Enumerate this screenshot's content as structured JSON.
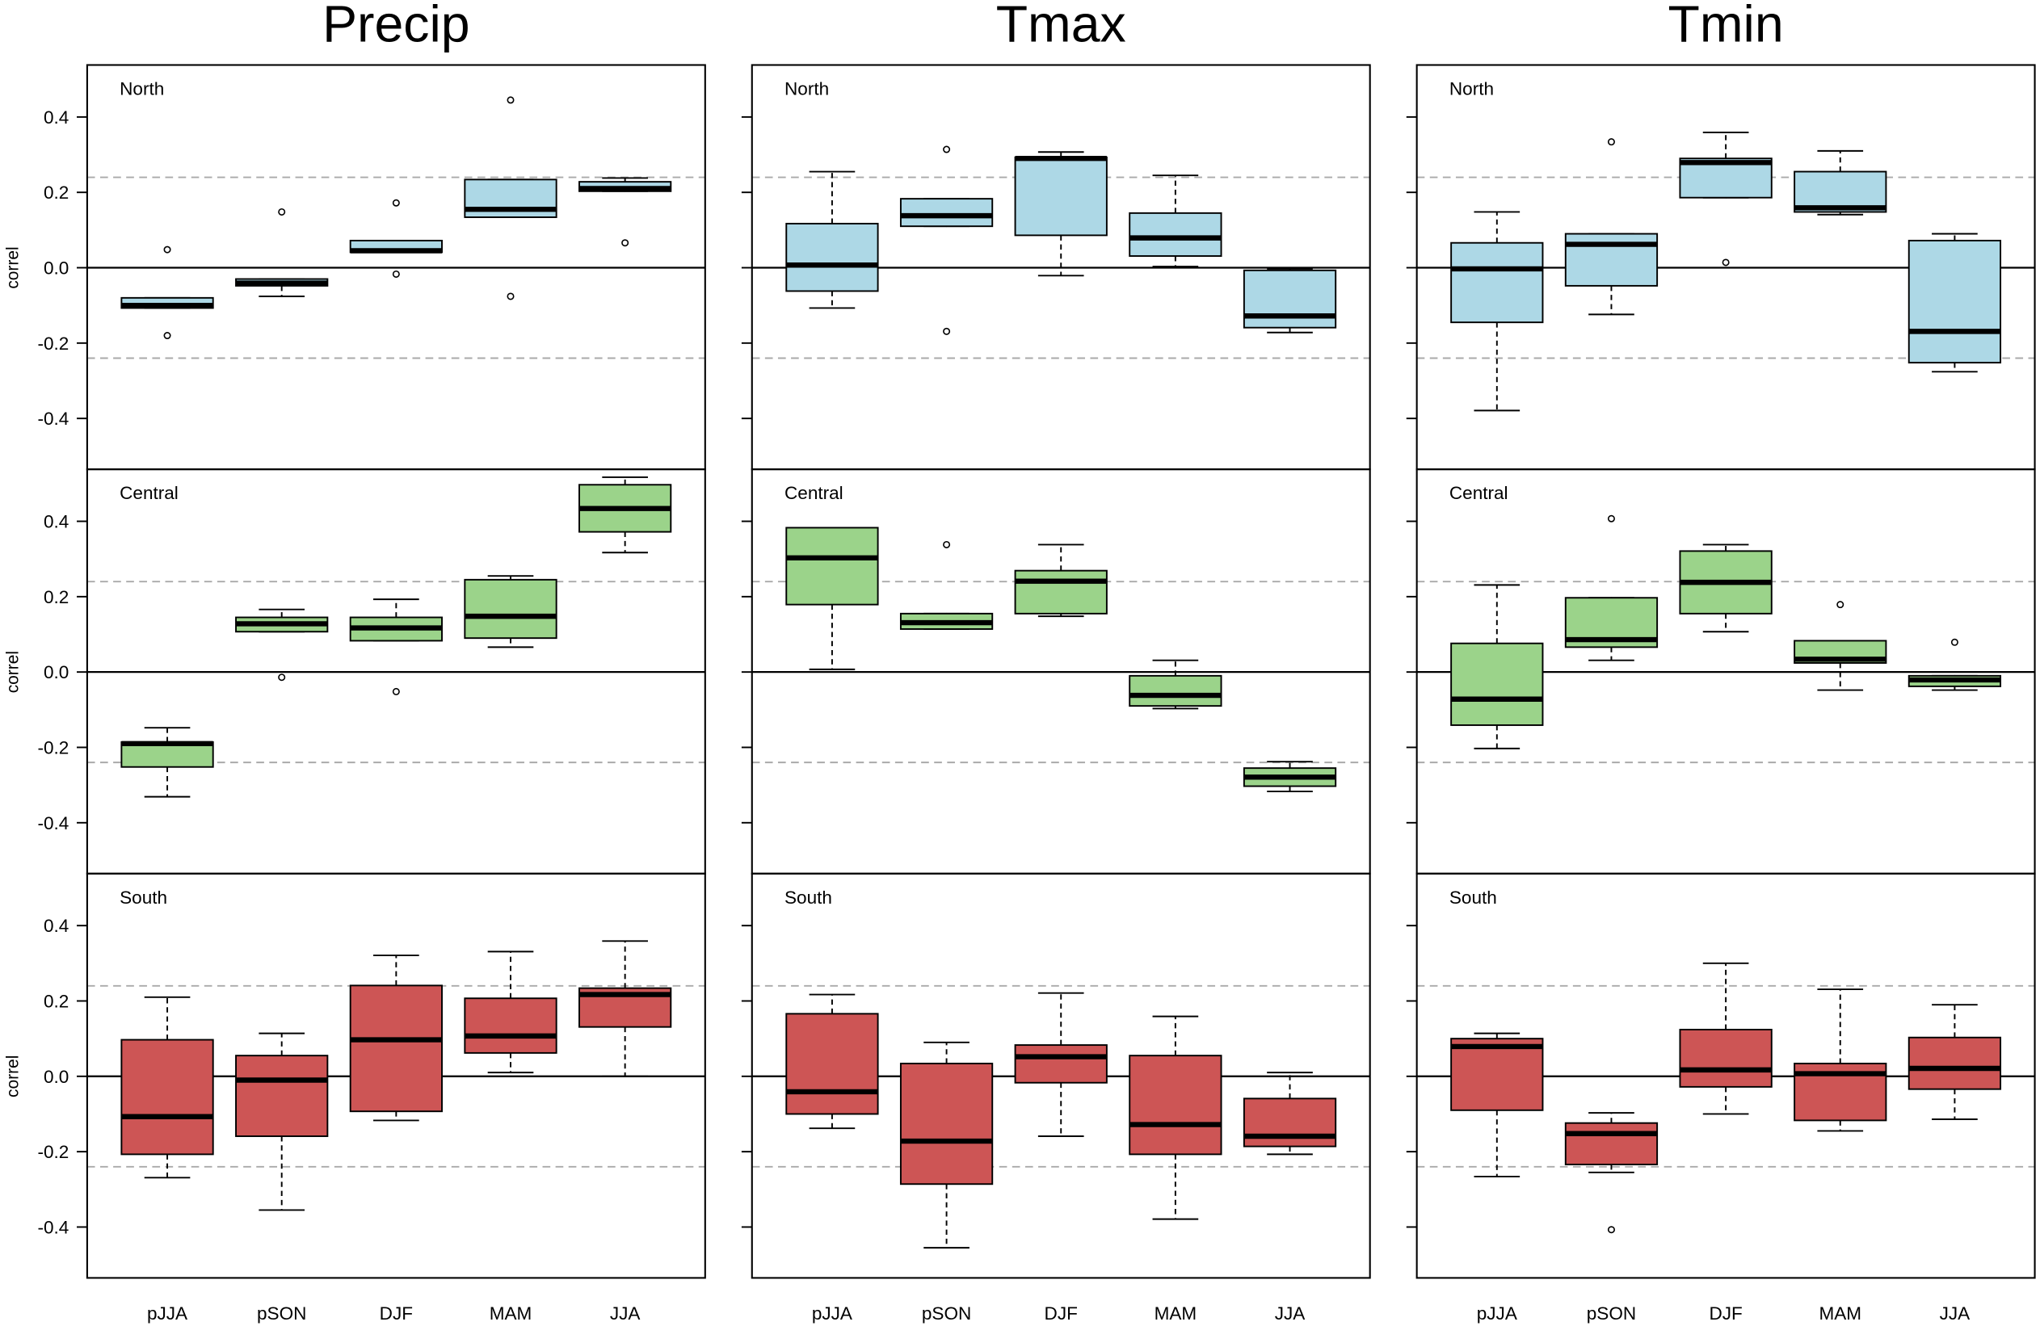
{
  "chart_data": {
    "type": "box",
    "ylabel": "correl",
    "categories": [
      "pJJA",
      "pSON",
      "DJF",
      "MAM",
      "JJA"
    ],
    "ylim": [
      -0.535,
      0.538
    ],
    "yticks": [
      -0.4,
      -0.2,
      {
        "value": 0,
        "label": "0.0"
      },
      0.2,
      0.4
    ],
    "dashed_lines": [
      0.24,
      -0.24
    ],
    "solid_lines": [
      0
    ],
    "columns": [
      {
        "title": "Precip",
        "panels": [
          {
            "region": "North",
            "color": "#add8e6",
            "boxes": [
              {
                "whisker_low": -0.107,
                "q1": -0.107,
                "median": -0.1,
                "q3": -0.08,
                "whisker_high": -0.08,
                "outliers": [
                  0.048,
                  -0.18
                ]
              },
              {
                "whisker_low": -0.076,
                "q1": -0.048,
                "median": -0.041,
                "q3": -0.03,
                "whisker_high": -0.03,
                "outliers": [
                  0.148
                ]
              },
              {
                "whisker_low": 0.041,
                "q1": 0.041,
                "median": 0.045,
                "q3": 0.072,
                "whisker_high": 0.072,
                "outliers": [
                  0.172,
                  -0.017
                ]
              },
              {
                "whisker_low": 0.134,
                "q1": 0.134,
                "median": 0.155,
                "q3": 0.234,
                "whisker_high": 0.234,
                "outliers": [
                  0.445,
                  -0.076
                ]
              },
              {
                "whisker_low": 0.203,
                "q1": 0.203,
                "median": 0.21,
                "q3": 0.228,
                "whisker_high": 0.238,
                "outliers": [
                  0.066
                ]
              }
            ]
          },
          {
            "region": "Central",
            "color": "#9bd38a",
            "boxes": [
              {
                "whisker_low": -0.331,
                "q1": -0.252,
                "median": -0.19,
                "q3": -0.186,
                "whisker_high": -0.148,
                "outliers": []
              },
              {
                "whisker_low": 0.107,
                "q1": 0.107,
                "median": 0.128,
                "q3": 0.145,
                "whisker_high": 0.166,
                "outliers": [
                  -0.014
                ]
              },
              {
                "whisker_low": 0.083,
                "q1": 0.083,
                "median": 0.117,
                "q3": 0.145,
                "whisker_high": 0.193,
                "outliers": [
                  -0.052
                ]
              },
              {
                "whisker_low": 0.066,
                "q1": 0.09,
                "median": 0.148,
                "q3": 0.245,
                "whisker_high": 0.255,
                "outliers": []
              },
              {
                "whisker_low": 0.317,
                "q1": 0.372,
                "median": 0.434,
                "q3": 0.497,
                "whisker_high": 0.517,
                "outliers": []
              }
            ]
          },
          {
            "region": "South",
            "color": "#cd5555",
            "boxes": [
              {
                "whisker_low": -0.269,
                "q1": -0.207,
                "median": -0.107,
                "q3": 0.097,
                "whisker_high": 0.21,
                "outliers": []
              },
              {
                "whisker_low": -0.355,
                "q1": -0.159,
                "median": -0.01,
                "q3": 0.055,
                "whisker_high": 0.114,
                "outliers": []
              },
              {
                "whisker_low": -0.117,
                "q1": -0.093,
                "median": 0.097,
                "q3": 0.241,
                "whisker_high": 0.321,
                "outliers": []
              },
              {
                "whisker_low": 0.01,
                "q1": 0.062,
                "median": 0.107,
                "q3": 0.207,
                "whisker_high": 0.331,
                "outliers": []
              },
              {
                "whisker_low": 0.0,
                "q1": 0.131,
                "median": 0.217,
                "q3": 0.234,
                "whisker_high": 0.359,
                "outliers": []
              }
            ]
          }
        ]
      },
      {
        "title": "Tmax",
        "panels": [
          {
            "region": "North",
            "color": "#add8e6",
            "boxes": [
              {
                "whisker_low": -0.107,
                "q1": -0.062,
                "median": 0.007,
                "q3": 0.117,
                "whisker_high": 0.255,
                "outliers": []
              },
              {
                "whisker_low": 0.11,
                "q1": 0.11,
                "median": 0.138,
                "q3": 0.183,
                "whisker_high": 0.183,
                "outliers": [
                  0.314,
                  -0.169
                ]
              },
              {
                "whisker_low": -0.021,
                "q1": 0.086,
                "median": 0.29,
                "q3": 0.293,
                "whisker_high": 0.307,
                "outliers": []
              },
              {
                "whisker_low": 0.003,
                "q1": 0.031,
                "median": 0.079,
                "q3": 0.145,
                "whisker_high": 0.245,
                "outliers": []
              },
              {
                "whisker_low": -0.172,
                "q1": -0.159,
                "median": -0.128,
                "q3": -0.007,
                "whisker_high": -0.003,
                "outliers": []
              }
            ]
          },
          {
            "region": "Central",
            "color": "#9bd38a",
            "boxes": [
              {
                "whisker_low": 0.007,
                "q1": 0.179,
                "median": 0.303,
                "q3": 0.383,
                "whisker_high": 0.383,
                "outliers": []
              },
              {
                "whisker_low": 0.114,
                "q1": 0.114,
                "median": 0.131,
                "q3": 0.155,
                "whisker_high": 0.155,
                "outliers": [
                  0.338
                ]
              },
              {
                "whisker_low": 0.148,
                "q1": 0.155,
                "median": 0.241,
                "q3": 0.269,
                "whisker_high": 0.338,
                "outliers": []
              },
              {
                "whisker_low": -0.097,
                "q1": -0.09,
                "median": -0.062,
                "q3": -0.01,
                "whisker_high": 0.031,
                "outliers": []
              },
              {
                "whisker_low": -0.317,
                "q1": -0.303,
                "median": -0.279,
                "q3": -0.255,
                "whisker_high": -0.238,
                "outliers": []
              }
            ]
          },
          {
            "region": "South",
            "color": "#cd5555",
            "boxes": [
              {
                "whisker_low": -0.138,
                "q1": -0.1,
                "median": -0.041,
                "q3": 0.166,
                "whisker_high": 0.217,
                "outliers": []
              },
              {
                "whisker_low": -0.455,
                "q1": -0.286,
                "median": -0.172,
                "q3": 0.034,
                "whisker_high": 0.09,
                "outliers": []
              },
              {
                "whisker_low": -0.159,
                "q1": -0.017,
                "median": 0.052,
                "q3": 0.083,
                "whisker_high": 0.221,
                "outliers": []
              },
              {
                "whisker_low": -0.379,
                "q1": -0.207,
                "median": -0.128,
                "q3": 0.055,
                "whisker_high": 0.159,
                "outliers": []
              },
              {
                "whisker_low": -0.207,
                "q1": -0.186,
                "median": -0.159,
                "q3": -0.059,
                "whisker_high": 0.01,
                "outliers": []
              }
            ]
          }
        ]
      },
      {
        "title": "Tmin",
        "panels": [
          {
            "region": "North",
            "color": "#add8e6",
            "boxes": [
              {
                "whisker_low": -0.379,
                "q1": -0.145,
                "median": -0.003,
                "q3": 0.066,
                "whisker_high": 0.148,
                "outliers": []
              },
              {
                "whisker_low": -0.124,
                "q1": -0.048,
                "median": 0.062,
                "q3": 0.09,
                "whisker_high": 0.09,
                "outliers": [
                  0.334
                ]
              },
              {
                "whisker_low": 0.186,
                "q1": 0.186,
                "median": 0.279,
                "q3": 0.29,
                "whisker_high": 0.359,
                "outliers": [
                  0.014
                ]
              },
              {
                "whisker_low": 0.141,
                "q1": 0.148,
                "median": 0.159,
                "q3": 0.255,
                "whisker_high": 0.31,
                "outliers": []
              },
              {
                "whisker_low": -0.276,
                "q1": -0.252,
                "median": -0.169,
                "q3": 0.072,
                "whisker_high": 0.09,
                "outliers": []
              }
            ]
          },
          {
            "region": "Central",
            "color": "#9bd38a",
            "boxes": [
              {
                "whisker_low": -0.203,
                "q1": -0.141,
                "median": -0.072,
                "q3": 0.076,
                "whisker_high": 0.231,
                "outliers": []
              },
              {
                "whisker_low": 0.031,
                "q1": 0.066,
                "median": 0.086,
                "q3": 0.197,
                "whisker_high": 0.197,
                "outliers": [
                  0.407
                ]
              },
              {
                "whisker_low": 0.107,
                "q1": 0.155,
                "median": 0.238,
                "q3": 0.321,
                "whisker_high": 0.338,
                "outliers": []
              },
              {
                "whisker_low": -0.048,
                "q1": 0.024,
                "median": 0.034,
                "q3": 0.083,
                "whisker_high": 0.083,
                "outliers": [
                  0.179
                ]
              },
              {
                "whisker_low": -0.048,
                "q1": -0.038,
                "median": -0.021,
                "q3": -0.01,
                "whisker_high": -0.01,
                "outliers": [
                  0.079
                ]
              }
            ]
          },
          {
            "region": "South",
            "color": "#cd5555",
            "boxes": [
              {
                "whisker_low": -0.266,
                "q1": -0.09,
                "median": 0.079,
                "q3": 0.1,
                "whisker_high": 0.114,
                "outliers": []
              },
              {
                "whisker_low": -0.255,
                "q1": -0.234,
                "median": -0.152,
                "q3": -0.124,
                "whisker_high": -0.097,
                "outliers": [
                  -0.407
                ]
              },
              {
                "whisker_low": -0.1,
                "q1": -0.028,
                "median": 0.017,
                "q3": 0.124,
                "whisker_high": 0.3,
                "outliers": []
              },
              {
                "whisker_low": -0.145,
                "q1": -0.117,
                "median": 0.007,
                "q3": 0.034,
                "whisker_high": 0.231,
                "outliers": []
              },
              {
                "whisker_low": -0.114,
                "q1": -0.034,
                "median": 0.021,
                "q3": 0.103,
                "whisker_high": 0.19,
                "outliers": []
              }
            ]
          }
        ]
      }
    ]
  }
}
